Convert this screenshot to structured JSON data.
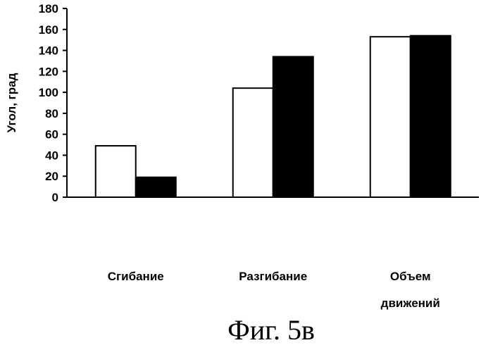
{
  "chart_data": {
    "type": "bar",
    "title": "",
    "xlabel": "",
    "ylabel": "Угол, град",
    "categories": [
      "Сгибание",
      "Разгибание",
      "Объем движений"
    ],
    "category_lines": [
      [
        "Сгибание"
      ],
      [
        "Разгибание"
      ],
      [
        "Объем",
        "движений"
      ]
    ],
    "series": [
      {
        "values": [
          49,
          104,
          153
        ],
        "color": "#ffffff"
      },
      {
        "values": [
          19,
          134,
          154
        ],
        "color": "#000000"
      }
    ],
    "ylim": [
      0,
      180
    ],
    "yticks": [
      0,
      20,
      40,
      60,
      80,
      100,
      120,
      140,
      160,
      180
    ],
    "grid": false,
    "legend": "none"
  },
  "caption": "Фиг. 5в"
}
